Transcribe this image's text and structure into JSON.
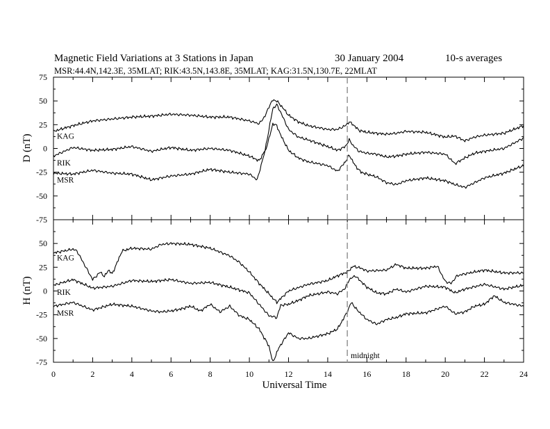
{
  "title": {
    "main": "Magnetic Field Variations at 3 Stations in Japan",
    "date": "30 January 2004",
    "avg": "10-s averages"
  },
  "subtitle": "MSR:44.4N,142.3E, 35MLAT;   RIK:43.5N,143.8E, 35MLAT;   KAG:31.5N,130.7E, 22MLAT",
  "chart_data": {
    "type": "line",
    "xlabel": "Universal Time",
    "xlim": [
      0,
      24
    ],
    "x_ticks": [
      "0",
      "2",
      "4",
      "6",
      "8",
      "10",
      "12",
      "14",
      "16",
      "18",
      "20",
      "22",
      "24"
    ],
    "annotation": {
      "x": 15,
      "label": "midnight",
      "style": "dashed"
    },
    "panels": [
      {
        "ylabel": "D (nT)",
        "ylim": [
          -75,
          75
        ],
        "y_ticks": [
          "75",
          "50",
          "25",
          "0",
          "-25",
          "-50",
          "-75"
        ],
        "series": [
          {
            "name": "KAG",
            "x": [
              0,
              1,
              2,
              3,
              4,
              5,
              6,
              7,
              8,
              9,
              10,
              10.5,
              10.8,
              11,
              11.2,
              11.4,
              11.7,
              12,
              12.5,
              13,
              14,
              14.5,
              14.9,
              15.1,
              15.3,
              15.6,
              16,
              17,
              17.5,
              18,
              19,
              20,
              20.5,
              21,
              21.5,
              22,
              23,
              24
            ],
            "y": [
              18,
              24,
              29,
              31,
              33,
              34,
              36,
              35,
              33,
              33,
              29,
              26,
              34,
              44,
              51,
              50,
              43,
              35,
              28,
              24,
              20,
              20,
              24,
              28,
              25,
              19,
              17,
              15,
              16,
              18,
              17,
              12,
              13,
              8,
              12,
              14,
              16,
              24
            ]
          },
          {
            "name": "RIK",
            "x": [
              0,
              1,
              2,
              3,
              4,
              5,
              6,
              7,
              8,
              9,
              10,
              10.5,
              10.8,
              11,
              11.2,
              11.4,
              11.6,
              12,
              12.5,
              13,
              14,
              14.5,
              14.9,
              15.1,
              15.3,
              15.6,
              16,
              16.5,
              17,
              17.5,
              18,
              19,
              20,
              20.5,
              21,
              21.5,
              22,
              23,
              24
            ],
            "y": [
              -8,
              1,
              -2,
              -1,
              2,
              -3,
              1,
              -2,
              0,
              -2,
              -8,
              -13,
              -2,
              20,
              42,
              46,
              38,
              20,
              12,
              9,
              2,
              -2,
              2,
              9,
              3,
              -3,
              -5,
              -6,
              -9,
              -8,
              -6,
              -4,
              -6,
              -16,
              -10,
              -5,
              -3,
              0,
              11
            ]
          },
          {
            "name": "MSR",
            "x": [
              0,
              1,
              2,
              3,
              4,
              5,
              6,
              7,
              8,
              9,
              10,
              10.4,
              10.7,
              11,
              11.2,
              11.4,
              11.6,
              12,
              12.5,
              13,
              14,
              14.5,
              14.9,
              15.1,
              15.4,
              15.7,
              16,
              16.5,
              17,
              17.5,
              18,
              19,
              20,
              20.5,
              21,
              21.5,
              22,
              23,
              24
            ],
            "y": [
              -26,
              -27,
              -23,
              -26,
              -27,
              -33,
              -29,
              -27,
              -22,
              -25,
              -27,
              -33,
              -10,
              10,
              26,
              24,
              14,
              -2,
              -10,
              -14,
              -18,
              -24,
              -14,
              -7,
              -18,
              -25,
              -27,
              -30,
              -36,
              -38,
              -34,
              -31,
              -34,
              -38,
              -41,
              -36,
              -31,
              -26,
              -18
            ]
          }
        ]
      },
      {
        "ylabel": "H (nT)",
        "ylim": [
          -75,
          75
        ],
        "y_ticks": [
          "75",
          "50",
          "25",
          "0",
          "-25",
          "-50",
          "-75"
        ],
        "series": [
          {
            "name": "KAG",
            "x": [
              0,
              1,
              1.2,
              2,
              2.4,
              2.6,
              2.8,
              3,
              3.5,
              4,
              5,
              5.5,
              6,
              7,
              8,
              9,
              9.5,
              10,
              10.5,
              11,
              11.4,
              12,
              13,
              14,
              14.5,
              15,
              15.3,
              15.7,
              16,
              17,
              17.5,
              18,
              19,
              19.6,
              20,
              20.3,
              20.6,
              21,
              22,
              23,
              24
            ],
            "y": [
              40,
              44,
              42,
              12,
              20,
              15,
              22,
              18,
              42,
              45,
              44,
              49,
              50,
              49,
              45,
              37,
              30,
              20,
              8,
              -3,
              -12,
              0,
              7,
              11,
              16,
              20,
              26,
              24,
              21,
              22,
              28,
              24,
              24,
              26,
              10,
              8,
              16,
              18,
              22,
              19,
              19
            ]
          },
          {
            "name": "RIK",
            "x": [
              0,
              1,
              2,
              3,
              4,
              5,
              6,
              7,
              8,
              9,
              10,
              10.5,
              11,
              11.4,
              11.6,
              12,
              12.5,
              13,
              14,
              14.5,
              14.9,
              15.1,
              15.4,
              15.7,
              16,
              16.5,
              17,
              17.5,
              18,
              19,
              20,
              20.5,
              21,
              22,
              23,
              24
            ],
            "y": [
              6,
              12,
              3,
              5,
              11,
              10,
              12,
              8,
              9,
              4,
              -2,
              -14,
              -26,
              -28,
              -15,
              -14,
              -10,
              -5,
              -1,
              -3,
              3,
              12,
              16,
              10,
              4,
              -2,
              -3,
              2,
              -1,
              5,
              4,
              -2,
              2,
              7,
              2,
              6
            ]
          },
          {
            "name": "MSR",
            "x": [
              0,
              1,
              2,
              3,
              4,
              5,
              5.5,
              6,
              6.5,
              7,
              7.5,
              8,
              8.5,
              9,
              9.5,
              10,
              10.5,
              11,
              11.2,
              11.5,
              12,
              12.5,
              13,
              14,
              14.5,
              15,
              15.2,
              15.5,
              16,
              16.5,
              17,
              17.5,
              18,
              19,
              20,
              20.5,
              21,
              21.5,
              22,
              22.5,
              23,
              24
            ],
            "y": [
              -16,
              -12,
              -20,
              -14,
              -16,
              -21,
              -22,
              -21,
              -19,
              -16,
              -21,
              -14,
              -22,
              -16,
              -26,
              -30,
              -40,
              -58,
              -75,
              -60,
              -44,
              -50,
              -50,
              -45,
              -40,
              -22,
              -12,
              -20,
              -30,
              -35,
              -30,
              -28,
              -24,
              -23,
              -16,
              -24,
              -22,
              -16,
              -14,
              -5,
              -12,
              -16
            ]
          }
        ]
      }
    ]
  }
}
